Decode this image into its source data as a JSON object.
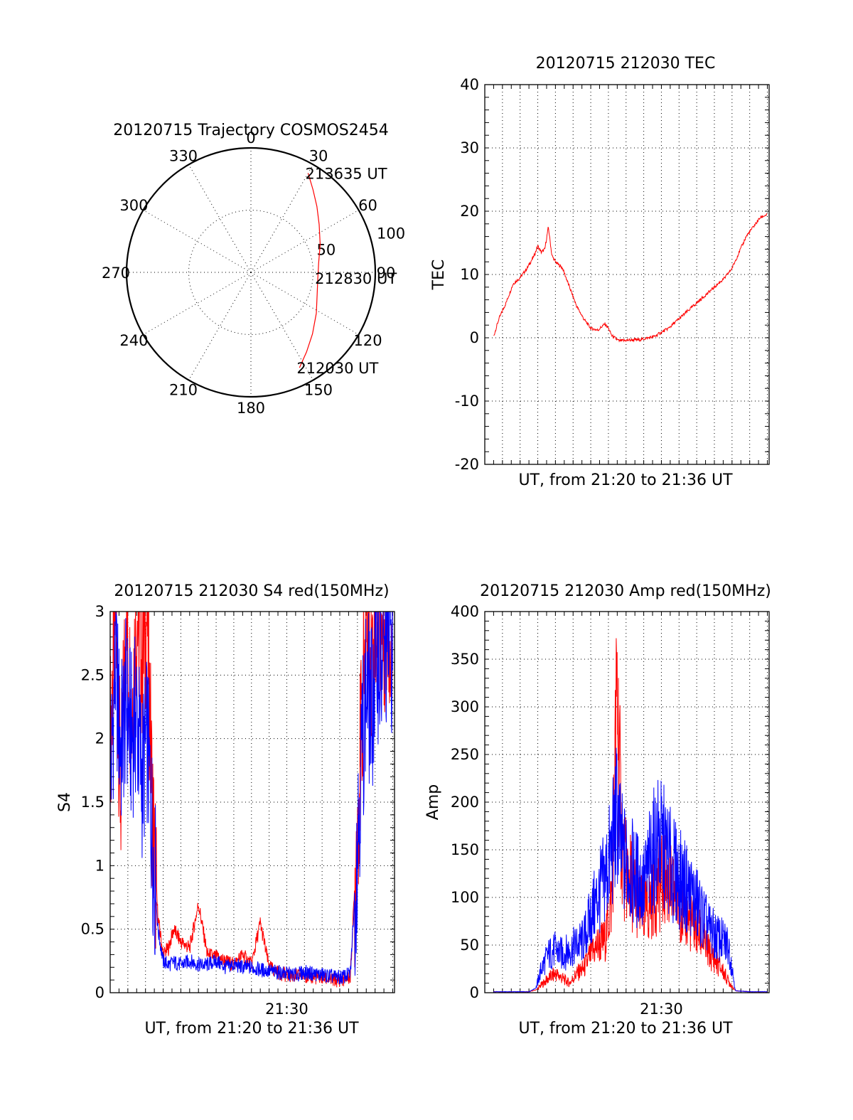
{
  "colors": {
    "red": "#ff0000",
    "blue": "#0000ff",
    "axis": "#000000"
  },
  "chart_data": [
    {
      "type": "polar",
      "title": "20120715 Trajectory COSMOS2454",
      "angle_labels": [
        "0",
        "30",
        "60",
        "90",
        "120",
        "150",
        "180",
        "210",
        "240",
        "270",
        "300",
        "330"
      ],
      "radius_labels": [
        "50",
        "100"
      ],
      "rmax": 100,
      "trajectory": {
        "color": "red",
        "points": [
          {
            "az": 153,
            "r": 86
          },
          {
            "az": 145,
            "r": 78
          },
          {
            "az": 135,
            "r": 70
          },
          {
            "az": 122,
            "r": 62
          },
          {
            "az": 108,
            "r": 56
          },
          {
            "az": 95,
            "r": 54
          },
          {
            "az": 82,
            "r": 55
          },
          {
            "az": 68,
            "r": 60
          },
          {
            "az": 55,
            "r": 67
          },
          {
            "az": 45,
            "r": 75
          },
          {
            "az": 37,
            "r": 83
          },
          {
            "az": 30,
            "r": 92
          }
        ]
      },
      "annotations": [
        {
          "text": "213635 UT",
          "az": 30,
          "r": 92
        },
        {
          "text": "212830 UT",
          "az": 95,
          "r": 54
        },
        {
          "text": "212030 UT",
          "az": 153,
          "r": 86
        }
      ]
    },
    {
      "type": "line",
      "title": "20120715 212030 TEC",
      "xlabel": "UT, from 21:20 to 21:36 UT",
      "ylabel": "TEC",
      "xlim": [
        0,
        16.1
      ],
      "ylim": [
        -20,
        40
      ],
      "yticks": [
        "-20",
        "-10",
        "0",
        "10",
        "20",
        "30",
        "40"
      ],
      "xticks": [],
      "series": [
        {
          "color": "red",
          "x": [
            0.5,
            0.8,
            1.2,
            1.6,
            2.0,
            2.4,
            2.8,
            3.0,
            3.2,
            3.4,
            3.6,
            3.8,
            4.0,
            4.4,
            4.8,
            5.2,
            5.6,
            6.0,
            6.4,
            6.8,
            7.0,
            7.2,
            7.6,
            8.0,
            8.8,
            9.6,
            10.4,
            11.2,
            12.0,
            12.8,
            13.6,
            14.0,
            14.4,
            14.8,
            15.2,
            15.6,
            16.0
          ],
          "y": [
            0.2,
            3.0,
            5.5,
            8.5,
            9.5,
            11.0,
            13.0,
            14.5,
            13.5,
            14.0,
            17.5,
            13.0,
            12.0,
            11.0,
            8.0,
            5.0,
            3.0,
            1.5,
            1.2,
            2.2,
            1.5,
            0.3,
            -0.5,
            -0.4,
            -0.3,
            0.2,
            1.5,
            3.5,
            5.5,
            7.5,
            9.5,
            11.0,
            13.5,
            16.0,
            17.5,
            19.0,
            19.5
          ]
        }
      ]
    },
    {
      "type": "line",
      "title": "20120715 212030 S4 red(150MHz)",
      "xlabel": "UT, from 21:20 to 21:36 UT",
      "ylabel": "S4",
      "xlim": [
        0,
        16.1
      ],
      "ylim": [
        0,
        3
      ],
      "yticks": [
        "0",
        "0.5",
        "1",
        "1.5",
        "2",
        "2.5",
        "3"
      ],
      "xticks": [
        {
          "x": 10,
          "label": "21:30"
        }
      ],
      "series": [
        {
          "color": "red",
          "x": [
            0.0,
            0.3,
            0.6,
            0.9,
            1.2,
            1.5,
            1.8,
            2.1,
            2.4,
            2.7,
            3.0,
            3.3,
            3.6,
            4.0,
            4.5,
            5.0,
            5.5,
            6.0,
            6.5,
            7.0,
            7.5,
            8.0,
            8.5,
            9.0,
            9.5,
            10.0,
            10.5,
            11.0,
            11.5,
            12.0,
            12.5,
            13.0,
            13.3,
            13.6,
            13.9,
            14.2,
            14.5,
            14.8,
            15.1,
            15.4,
            15.7,
            16.0
          ],
          "y": [
            2.0,
            3.0,
            1.5,
            3.0,
            2.2,
            3.0,
            2.6,
            3.0,
            1.4,
            0.6,
            0.3,
            0.35,
            0.5,
            0.4,
            0.35,
            0.7,
            0.3,
            0.28,
            0.25,
            0.22,
            0.3,
            0.22,
            0.55,
            0.2,
            0.16,
            0.14,
            0.13,
            0.14,
            0.12,
            0.12,
            0.1,
            0.1,
            0.11,
            0.12,
            1.0,
            2.0,
            3.0,
            2.6,
            3.0,
            2.8,
            3.0,
            2.6
          ]
        },
        {
          "color": "blue",
          "x": [
            0.0,
            0.3,
            0.6,
            0.9,
            1.2,
            1.5,
            1.8,
            2.1,
            2.4,
            2.7,
            3.0,
            3.3,
            3.6,
            4.0,
            4.5,
            5.0,
            5.5,
            6.0,
            6.5,
            7.0,
            7.5,
            8.0,
            8.5,
            9.0,
            9.5,
            10.0,
            10.5,
            11.0,
            11.5,
            12.0,
            12.5,
            13.0,
            13.3,
            13.6,
            13.9,
            14.2,
            14.5,
            14.8,
            15.1,
            15.4,
            15.7,
            16.0
          ],
          "y": [
            1.6,
            2.6,
            1.9,
            2.3,
            2.0,
            2.2,
            1.7,
            2.0,
            1.2,
            0.5,
            0.25,
            0.22,
            0.24,
            0.22,
            0.25,
            0.22,
            0.22,
            0.25,
            0.2,
            0.22,
            0.2,
            0.2,
            0.18,
            0.17,
            0.16,
            0.15,
            0.14,
            0.16,
            0.15,
            0.14,
            0.13,
            0.12,
            0.13,
            0.15,
            0.9,
            1.8,
            2.4,
            2.2,
            2.7,
            2.5,
            2.8,
            2.7
          ]
        }
      ]
    },
    {
      "type": "line",
      "title": "20120715 212030 Amp red(150MHz)",
      "xlabel": "UT, from 21:20 to 21:36 UT",
      "ylabel": "Amp",
      "xlim": [
        0,
        16.1
      ],
      "ylim": [
        0,
        400
      ],
      "yticks": [
        "0",
        "50",
        "100",
        "150",
        "200",
        "250",
        "300",
        "350",
        "400"
      ],
      "xticks": [
        {
          "x": 10,
          "label": "21:30"
        }
      ],
      "series": [
        {
          "color": "red",
          "x": [
            0.5,
            1.5,
            2.5,
            2.9,
            3.2,
            3.6,
            4.0,
            4.4,
            4.8,
            5.2,
            5.6,
            6.0,
            6.4,
            6.8,
            7.2,
            7.5,
            7.7,
            7.9,
            8.2,
            8.6,
            9.0,
            9.4,
            9.8,
            10.2,
            10.6,
            11.0,
            11.4,
            11.8,
            12.2,
            12.6,
            13.0,
            13.4,
            13.8,
            14.2,
            15.0,
            16.0
          ],
          "y": [
            1,
            1,
            1,
            3,
            8,
            15,
            20,
            15,
            10,
            20,
            25,
            40,
            50,
            55,
            100,
            320,
            180,
            130,
            120,
            100,
            80,
            95,
            110,
            120,
            105,
            95,
            80,
            70,
            60,
            45,
            35,
            25,
            12,
            2,
            1,
            1
          ]
        },
        {
          "color": "blue",
          "x": [
            0.5,
            1.5,
            2.5,
            2.9,
            3.2,
            3.6,
            4.0,
            4.4,
            4.8,
            5.2,
            5.6,
            6.0,
            6.4,
            6.8,
            7.2,
            7.5,
            7.7,
            7.9,
            8.2,
            8.6,
            9.0,
            9.4,
            9.8,
            10.2,
            10.6,
            11.0,
            11.4,
            11.8,
            12.2,
            12.6,
            13.0,
            13.4,
            13.8,
            14.2,
            15.0,
            16.0
          ],
          "y": [
            1,
            1,
            1,
            5,
            25,
            40,
            45,
            40,
            45,
            50,
            55,
            80,
            100,
            120,
            150,
            190,
            150,
            140,
            130,
            120,
            110,
            140,
            160,
            150,
            130,
            120,
            110,
            100,
            85,
            70,
            60,
            55,
            50,
            2,
            1,
            1
          ]
        }
      ]
    }
  ]
}
